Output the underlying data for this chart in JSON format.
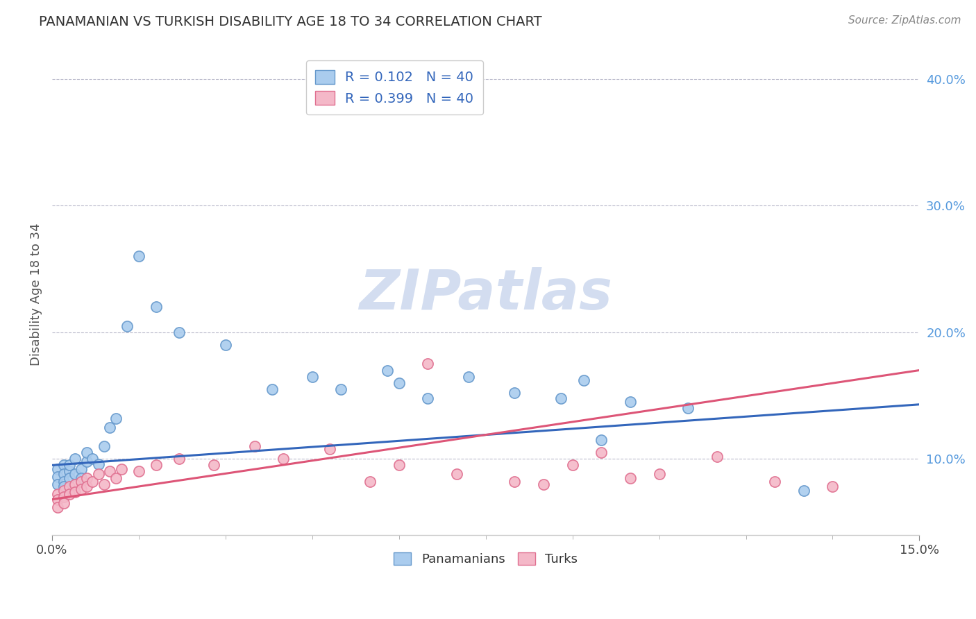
{
  "title": "PANAMANIAN VS TURKISH DISABILITY AGE 18 TO 34 CORRELATION CHART",
  "source": "Source: ZipAtlas.com",
  "ylabel": "Disability Age 18 to 34",
  "x_min": 0.0,
  "x_max": 0.15,
  "y_min": 0.04,
  "y_max": 0.42,
  "blue_color": "#aaccee",
  "blue_edge_color": "#6699cc",
  "pink_color": "#f4b8c8",
  "pink_edge_color": "#e07090",
  "blue_line_color": "#3366bb",
  "pink_line_color": "#dd5577",
  "right_ytick_color": "#5599dd",
  "right_yticks": [
    0.1,
    0.2,
    0.3,
    0.4
  ],
  "right_ytick_labels": [
    "10.0%",
    "20.0%",
    "30.0%",
    "40.0%"
  ],
  "blue_x": [
    0.001,
    0.001,
    0.001,
    0.002,
    0.002,
    0.002,
    0.002,
    0.003,
    0.003,
    0.003,
    0.004,
    0.004,
    0.005,
    0.005,
    0.006,
    0.006,
    0.007,
    0.008,
    0.009,
    0.01,
    0.011,
    0.013,
    0.015,
    0.018,
    0.022,
    0.03,
    0.038,
    0.045,
    0.05,
    0.058,
    0.06,
    0.065,
    0.072,
    0.08,
    0.088,
    0.092,
    0.095,
    0.1,
    0.11,
    0.13
  ],
  "blue_y": [
    0.092,
    0.086,
    0.08,
    0.095,
    0.088,
    0.082,
    0.078,
    0.09,
    0.085,
    0.095,
    0.1,
    0.088,
    0.092,
    0.085,
    0.098,
    0.105,
    0.1,
    0.096,
    0.11,
    0.125,
    0.132,
    0.205,
    0.26,
    0.22,
    0.2,
    0.19,
    0.155,
    0.165,
    0.155,
    0.17,
    0.16,
    0.148,
    0.165,
    0.152,
    0.148,
    0.162,
    0.115,
    0.145,
    0.14,
    0.075
  ],
  "pink_x": [
    0.001,
    0.001,
    0.001,
    0.002,
    0.002,
    0.002,
    0.003,
    0.003,
    0.004,
    0.004,
    0.005,
    0.005,
    0.006,
    0.006,
    0.007,
    0.008,
    0.009,
    0.01,
    0.011,
    0.012,
    0.015,
    0.018,
    0.022,
    0.028,
    0.035,
    0.04,
    0.048,
    0.055,
    0.06,
    0.065,
    0.07,
    0.08,
    0.085,
    0.09,
    0.095,
    0.1,
    0.105,
    0.115,
    0.125,
    0.135
  ],
  "pink_y": [
    0.072,
    0.068,
    0.062,
    0.075,
    0.07,
    0.065,
    0.078,
    0.072,
    0.08,
    0.074,
    0.082,
    0.076,
    0.085,
    0.078,
    0.082,
    0.088,
    0.08,
    0.09,
    0.085,
    0.092,
    0.09,
    0.095,
    0.1,
    0.095,
    0.11,
    0.1,
    0.108,
    0.082,
    0.095,
    0.175,
    0.088,
    0.082,
    0.08,
    0.095,
    0.105,
    0.085,
    0.088,
    0.102,
    0.082,
    0.078
  ],
  "watermark_text": "ZIPatlas",
  "watermark_color": "#ccd8ee",
  "legend1_label": "R = 0.102   N = 40",
  "legend2_label": "R = 0.399   N = 40",
  "bottom_legend1": "Panamanians",
  "bottom_legend2": "Turks"
}
